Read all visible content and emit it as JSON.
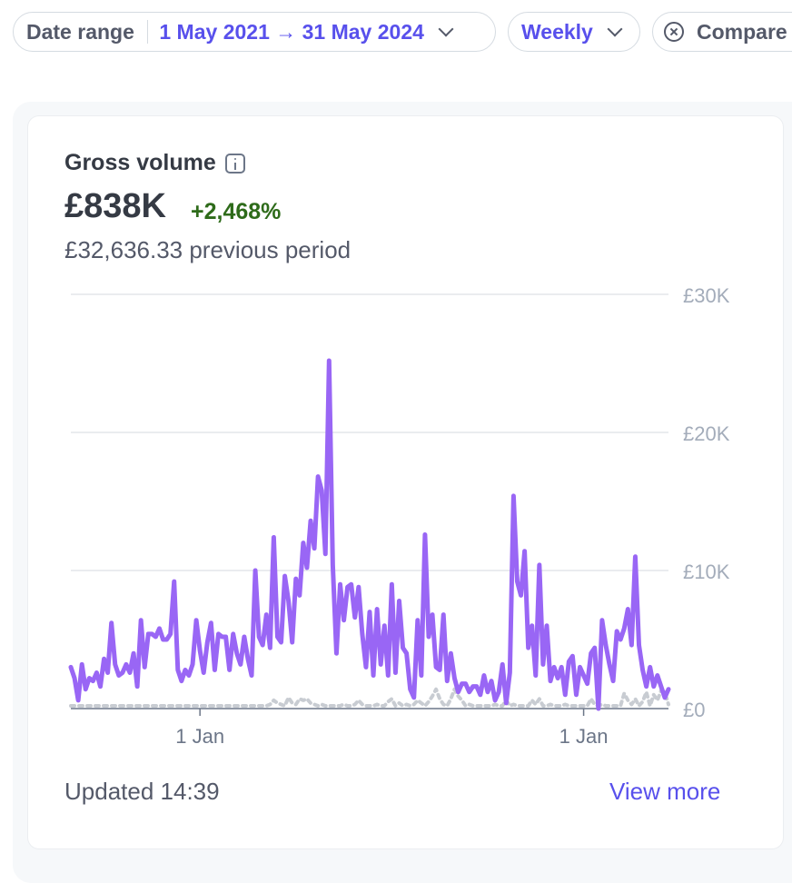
{
  "filters": {
    "date_range_label": "Date range",
    "date_range_value": "1 May 2021 → 31 May 2024",
    "interval": "Weekly",
    "compare": "Compare"
  },
  "card": {
    "title": "Gross volume",
    "value": "£838K",
    "change": "+2,468%",
    "previous": "£32,636.33 previous period",
    "updated": "Updated 14:39",
    "view_more": "View more"
  },
  "colors": {
    "accent": "#5850ec",
    "series": "#9966f5",
    "previous": "#c8ccd2",
    "positive": "#2e6b1a"
  },
  "chart_data": {
    "type": "line",
    "ylim": [
      0,
      30000
    ],
    "y_ticks": [
      "£0",
      "£10K",
      "£20K",
      "£30K"
    ],
    "x_ticks": [
      "1 Jan",
      "1 Jan"
    ],
    "x_tick_weeks": [
      35,
      139
    ],
    "series": [
      {
        "values": [
          3000,
          2200,
          600,
          3200,
          1400,
          2200,
          2000,
          2600,
          1600,
          3600,
          2600,
          6200,
          3200,
          2400,
          2600,
          3200,
          2600,
          4000,
          1600,
          6400,
          3000,
          5400,
          5400,
          5200,
          5800,
          5000,
          5000,
          5400,
          9200,
          2800,
          2000,
          2800,
          2400,
          3200,
          6400,
          4200,
          2600,
          4800,
          6200,
          2800,
          5400,
          5200,
          5200,
          2800,
          5400,
          4000,
          3200,
          5200,
          3600,
          2400,
          10000,
          5200,
          4600,
          6800,
          4400,
          12400,
          5200,
          4800,
          9600,
          7800,
          4800,
          9400,
          8200,
          12000,
          10200,
          13600,
          11600,
          16800,
          15800,
          11200,
          25200,
          10400,
          4000,
          9000,
          6400,
          8800,
          9000,
          6600,
          8800,
          5400,
          3000,
          7000,
          2400,
          7200,
          3200,
          6000,
          2400,
          9000,
          2600,
          7800,
          4400,
          4000,
          1400,
          800,
          6400,
          2400,
          12600,
          5200,
          6800,
          3000,
          2800,
          6800,
          2000,
          4000,
          2200,
          1200,
          1800,
          1800,
          1200,
          1600,
          1600,
          1000,
          2400,
          1200,
          2000,
          600,
          1200,
          3200,
          400,
          2600,
          15400,
          9200,
          8200,
          11400,
          4400,
          6000,
          2400,
          10400,
          3200,
          6000,
          2000,
          3000,
          2200,
          3000,
          1000,
          3400,
          3800,
          1000,
          3000,
          2400,
          1800,
          4000,
          4400,
          0,
          6400,
          4600,
          3200,
          2000,
          5600,
          5000,
          5800,
          7200,
          4600,
          11000,
          4600,
          2800,
          1600,
          3000,
          1600,
          2400,
          1600,
          800,
          1400
        ]
      },
      {
        "values": [
          200,
          200,
          200,
          200,
          200,
          200,
          200,
          200,
          200,
          200,
          200,
          200,
          200,
          200,
          200,
          200,
          200,
          200,
          200,
          200,
          200,
          200,
          200,
          200,
          200,
          200,
          200,
          200,
          200,
          200,
          200,
          200,
          200,
          200,
          200,
          200,
          200,
          200,
          200,
          200,
          200,
          200,
          200,
          200,
          200,
          200,
          200,
          200,
          200,
          200,
          200,
          200,
          200,
          200,
          300,
          600,
          400,
          300,
          200,
          800,
          400,
          300,
          700,
          600,
          700,
          400,
          300,
          200,
          300,
          200,
          200,
          200,
          200,
          200,
          300,
          200,
          200,
          300,
          600,
          300,
          200,
          200,
          200,
          300,
          200,
          200,
          500,
          700,
          200,
          400,
          200,
          300,
          200,
          300,
          600,
          400,
          200,
          500,
          900,
          1400,
          700,
          300,
          200,
          700,
          1400,
          900,
          600,
          200,
          300,
          200,
          200,
          200,
          200,
          200,
          200,
          300,
          200,
          200,
          600,
          200,
          300,
          200,
          200,
          200,
          200,
          600,
          300,
          700,
          200,
          200,
          300,
          200,
          200,
          200,
          300,
          200,
          200,
          200,
          200,
          200,
          200,
          700,
          300,
          200,
          300,
          200,
          200,
          200,
          200,
          200,
          1100,
          600,
          300,
          700,
          200,
          500,
          1200,
          200,
          1000,
          600,
          1300,
          1200,
          300
        ]
      }
    ]
  }
}
